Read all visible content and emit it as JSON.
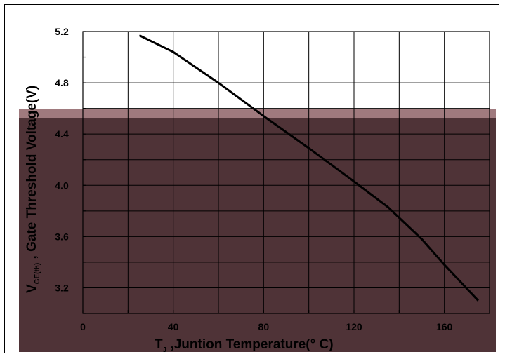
{
  "chart_data": {
    "type": "line",
    "title": "",
    "xlabel": "T  ,Juntion Temperature(° C)",
    "xlabel_prefix": "T",
    "xlabel_sub": "J",
    "xlabel_rest": " ,Juntion Temperature(° C)",
    "ylabel": "V GE(th) , Gate Threshold Voltage(V)",
    "ylabel_prefix": "V",
    "ylabel_sub": "GE(th)",
    "ylabel_rest": " , Gate Threshold Voltage(V)",
    "xlim": [
      0,
      180
    ],
    "ylim": [
      3.0,
      5.2
    ],
    "x_ticks": [
      0,
      40,
      80,
      120,
      160
    ],
    "x_tick_labels": [
      "0",
      "40",
      "80",
      "120",
      "160"
    ],
    "y_ticks": [
      3.2,
      3.6,
      4.0,
      4.4,
      4.8,
      5.2
    ],
    "y_tick_labels": [
      "3.2",
      "3.6",
      "4.0",
      "4.4",
      "4.8",
      "5.2"
    ],
    "grid": true,
    "series": [
      {
        "x": [
          25,
          40,
          60,
          80,
          100,
          120,
          135,
          150,
          160,
          175
        ],
        "y": [
          5.17,
          5.04,
          4.8,
          4.54,
          4.29,
          4.03,
          3.83,
          3.58,
          3.38,
          3.1
        ]
      }
    ],
    "colors": {
      "line": "#000000",
      "grid": "#000000",
      "overlay": "#4f3337",
      "overlay_band": "#a07a7e"
    }
  }
}
